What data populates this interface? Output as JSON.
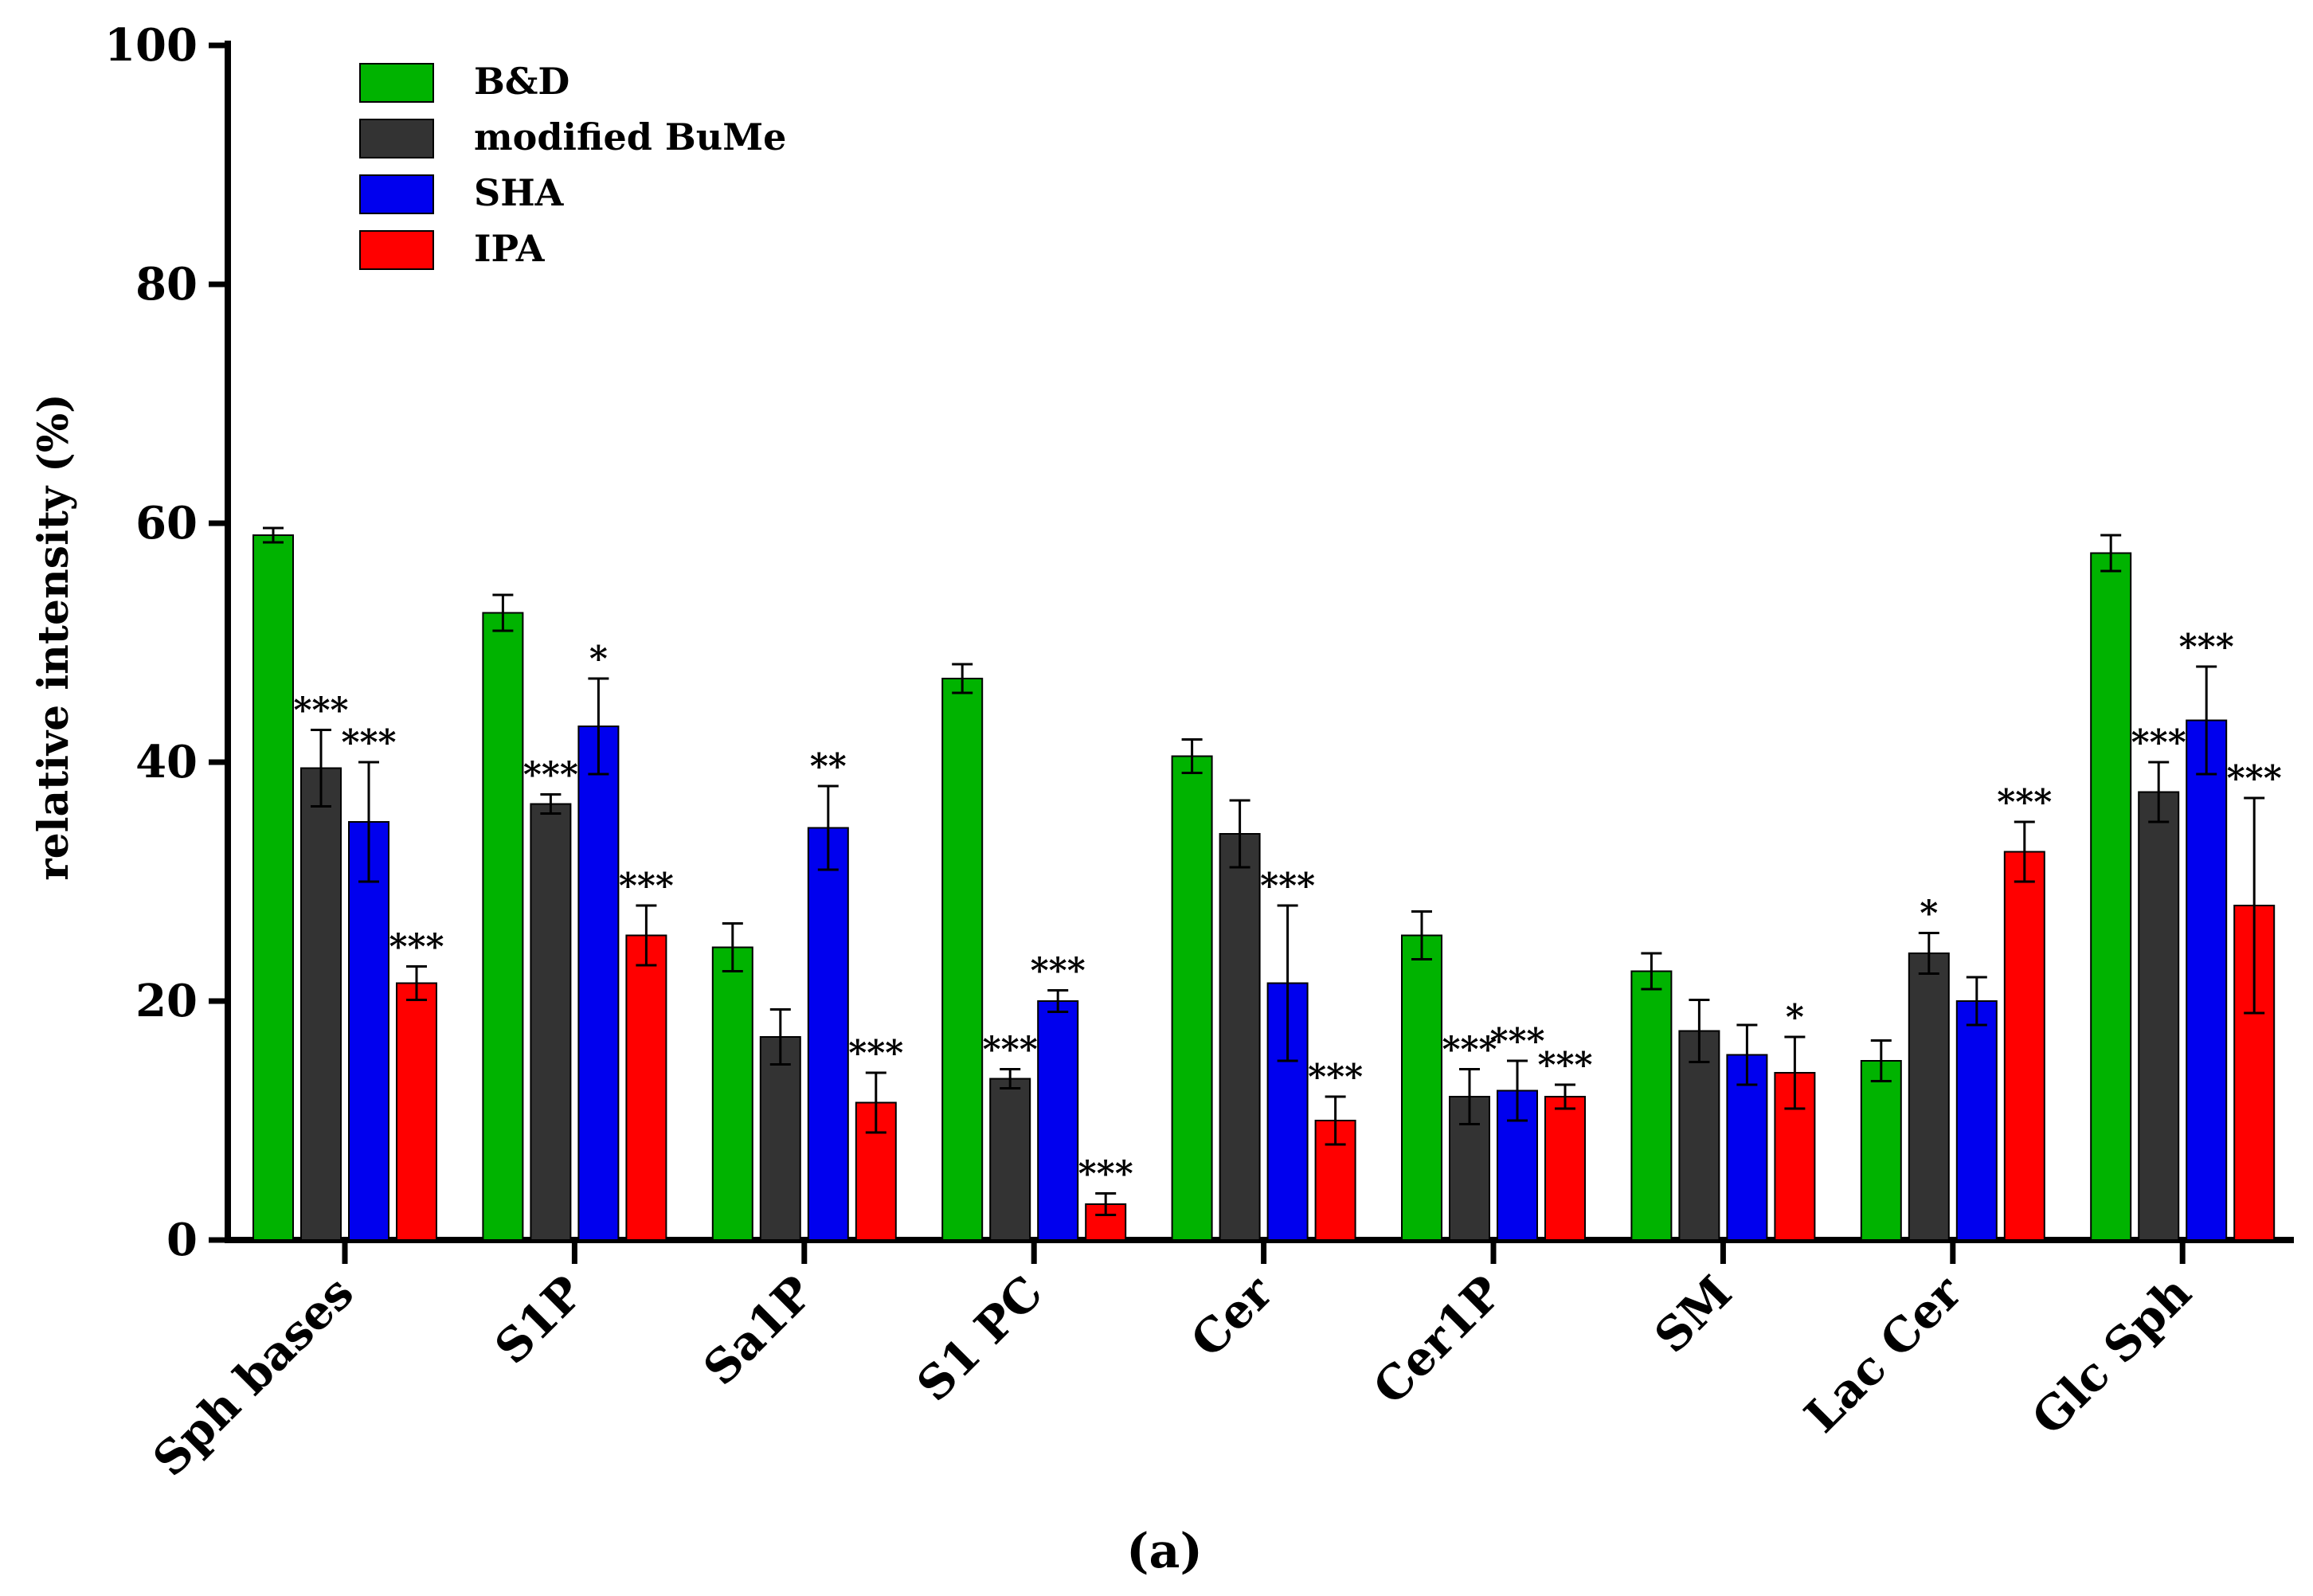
{
  "chart_data": {
    "type": "bar",
    "title": "",
    "xlabel": "",
    "ylabel": "relative intensity (%)",
    "ylim": [
      0,
      100
    ],
    "yticks": [
      0,
      20,
      40,
      60,
      80,
      100
    ],
    "grid": false,
    "legend_position": "top-left",
    "categories": [
      "Sph bases",
      "S1P",
      "Sa1P",
      "S1 PC",
      "Cer",
      "Cer1P",
      "SM",
      "Lac Cer",
      "Glc Sph"
    ],
    "series": [
      {
        "name": "B&D",
        "color": "#00b300",
        "values": [
          59,
          52.5,
          24.5,
          47,
          40.5,
          25.5,
          22.5,
          15,
          57.5
        ],
        "errors": [
          0.6,
          1.5,
          2,
          1.2,
          1.4,
          2,
          1.5,
          1.7,
          1.5
        ],
        "significance": [
          "",
          "",
          "",
          "",
          "",
          "",
          "",
          "",
          ""
        ]
      },
      {
        "name": "modified BuMe",
        "color": "#333333",
        "values": [
          39.5,
          36.5,
          17,
          13.5,
          34,
          12,
          17.5,
          24,
          37.5
        ],
        "errors": [
          3.2,
          0.8,
          2.3,
          0.8,
          2.8,
          2.3,
          2.6,
          1.7,
          2.5
        ],
        "significance": [
          "***",
          "***",
          "",
          "***",
          "",
          "***",
          "",
          "*",
          "***"
        ]
      },
      {
        "name": "SHA",
        "color": "#0000ee",
        "values": [
          35,
          43,
          34.5,
          20,
          21.5,
          12.5,
          15.5,
          20,
          43.5
        ],
        "errors": [
          5,
          4,
          3.5,
          0.9,
          6.5,
          2.5,
          2.5,
          2,
          4.5
        ],
        "significance": [
          "***",
          "*",
          "**",
          "***",
          "***",
          "***",
          "",
          "",
          "***"
        ]
      },
      {
        "name": "IPA",
        "color": "#ff0000",
        "values": [
          21.5,
          25.5,
          11.5,
          3,
          10,
          12,
          14,
          32.5,
          28
        ],
        "errors": [
          1.4,
          2.5,
          2.5,
          0.9,
          2,
          1,
          3,
          2.5,
          9
        ],
        "significance": [
          "***",
          "***",
          "***",
          "***",
          "***",
          "***",
          "*",
          "***",
          "***"
        ]
      }
    ]
  },
  "caption": "(a)"
}
